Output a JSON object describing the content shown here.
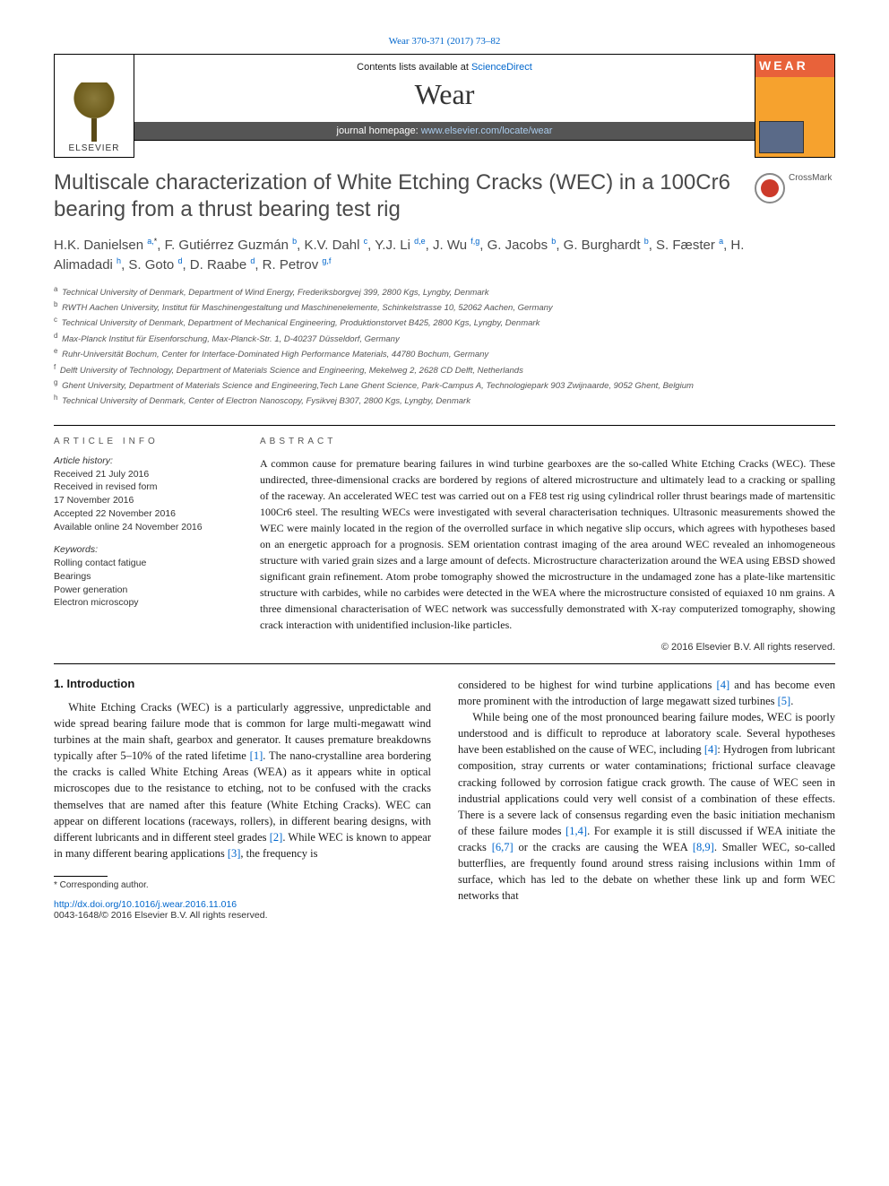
{
  "topLink": {
    "text": "Wear 370-371 (2017) 73–82",
    "href": "#"
  },
  "header": {
    "listingPrefix": "Contents lists available at ",
    "listingLink": "ScienceDirect",
    "journalName": "Wear",
    "homepagePrefix": "journal homepage: ",
    "homepageLink": "www.elsevier.com/locate/wear",
    "publisher": "ELSEVIER",
    "coverLabel": "WEAR"
  },
  "crossmark": {
    "label": "CrossMark"
  },
  "title": "Multiscale characterization of White Etching Cracks (WEC) in a 100Cr6 bearing from a thrust bearing test rig",
  "authors": [
    {
      "name": "H.K. Danielsen",
      "sup": "a,",
      "ast": "*"
    },
    {
      "name": "F. Gutiérrez Guzmán",
      "sup": "b"
    },
    {
      "name": "K.V. Dahl",
      "sup": "c"
    },
    {
      "name": "Y.J. Li",
      "sup": "d,e"
    },
    {
      "name": "J. Wu",
      "sup": "f,g"
    },
    {
      "name": "G. Jacobs",
      "sup": "b"
    },
    {
      "name": "G. Burghardt",
      "sup": "b"
    },
    {
      "name": "S. Fæster",
      "sup": "a"
    },
    {
      "name": "H. Alimadadi",
      "sup": "h"
    },
    {
      "name": "S. Goto",
      "sup": "d"
    },
    {
      "name": "D. Raabe",
      "sup": "d"
    },
    {
      "name": "R. Petrov",
      "sup": "g,f"
    }
  ],
  "affiliations": [
    {
      "sup": "a",
      "text": "Technical University of Denmark, Department of Wind Energy, Frederiksborgvej 399, 2800 Kgs, Lyngby, Denmark"
    },
    {
      "sup": "b",
      "text": "RWTH Aachen University, Institut für Maschinengestaltung und Maschinenelemente, Schinkelstrasse 10, 52062 Aachen, Germany"
    },
    {
      "sup": "c",
      "text": "Technical University of Denmark, Department of Mechanical Engineering, Produktionstorvet B425, 2800 Kgs, Lyngby, Denmark"
    },
    {
      "sup": "d",
      "text": "Max-Planck Institut für Eisenforschung, Max-Planck-Str. 1, D-40237 Düsseldorf, Germany"
    },
    {
      "sup": "e",
      "text": "Ruhr-Universität Bochum, Center for Interface-Dominated High Performance Materials, 44780 Bochum, Germany"
    },
    {
      "sup": "f",
      "text": "Delft University of Technology, Department of Materials Science and Engineering, Mekelweg 2, 2628 CD Delft, Netherlands"
    },
    {
      "sup": "g",
      "text": "Ghent University, Department of Materials Science and Engineering,Tech Lane Ghent Science, Park-Campus A, Technologiepark 903 Zwijnaarde, 9052 Ghent, Belgium"
    },
    {
      "sup": "h",
      "text": "Technical University of Denmark, Center of Electron Nanoscopy, Fysikvej B307, 2800 Kgs, Lyngby, Denmark"
    }
  ],
  "info": {
    "headInfo": "ARTICLE INFO",
    "headAbstract": "ABSTRACT",
    "historyLabel": "Article history:",
    "history": [
      "Received 21 July 2016",
      "Received in revised form",
      "17 November 2016",
      "Accepted 22 November 2016",
      "Available online 24 November 2016"
    ],
    "keywordsLabel": "Keywords:",
    "keywords": [
      "Rolling contact fatigue",
      "Bearings",
      "Power generation",
      "Electron microscopy"
    ]
  },
  "abstract": "A common cause for premature bearing failures in wind turbine gearboxes are the so-called White Etching Cracks (WEC). These undirected, three-dimensional cracks are bordered by regions of altered microstructure and ultimately lead to a cracking or spalling of the raceway. An accelerated WEC test was carried out on a FE8 test rig using cylindrical roller thrust bearings made of martensitic 100Cr6 steel. The resulting WECs were investigated with several characterisation techniques. Ultrasonic measurements showed the WEC were mainly located in the region of the overrolled surface in which negative slip occurs, which agrees with hypotheses based on an energetic approach for a prognosis. SEM orientation contrast imaging of the area around WEC revealed an inhomogeneous structure with varied grain sizes and a large amount of defects. Microstructure characterization around the WEA using EBSD showed significant grain refinement. Atom probe tomography showed the microstructure in the undamaged zone has a plate-like martensitic structure with carbides, while no carbides were detected in the WEA where the microstructure consisted of equiaxed 10 nm grains. A three dimensional characterisation of WEC network was successfully demonstrated with X-ray computerized tomography, showing crack interaction with unidentified inclusion-like particles.",
  "copyright": "© 2016 Elsevier B.V. All rights reserved.",
  "body": {
    "heading": "1.  Introduction",
    "leftParas": [
      "White Etching Cracks (WEC) is a particularly aggressive, unpredictable and wide spread bearing failure mode that is common for large multi-megawatt wind turbines at the main shaft, gearbox and generator. It causes premature breakdowns typically after 5–10% of the rated lifetime [1]. The nano-crystalline area bordering the cracks is called White Etching Areas (WEA) as it appears white in optical microscopes due to the resistance to etching, not to be confused with the cracks themselves that are named after this feature (White Etching Cracks). WEC can appear on different locations (raceways, rollers), in different bearing designs, with different lubricants and in different steel grades [2]. While WEC is known to appear in many different bearing applications [3], the frequency is"
    ],
    "rightParas": [
      "considered to be highest for wind turbine applications [4] and has become even more prominent with the introduction of large megawatt sized turbines [5].",
      "While being one of the most pronounced bearing failure modes, WEC is poorly understood and is difficult to reproduce at laboratory scale. Several hypotheses have been established on the cause of WEC, including [4]: Hydrogen from lubricant composition, stray currents or water contaminations; frictional surface cleavage cracking followed by corrosion fatigue crack growth. The cause of WEC seen in industrial applications could very well consist of a combination of these effects. There is a severe lack of consensus regarding even the basic initiation mechanism of these failure modes [1,4]. For example it is still discussed if WEA initiate the cracks [6,7] or the cracks are causing the WEA [8,9]. Smaller WEC, so-called butterflies, are frequently found around stress raising inclusions within 1mm of surface, which has led to the debate on whether these link up and form WEC networks that"
    ]
  },
  "footnote": "* Corresponding author.",
  "footer": {
    "doi": "http://dx.doi.org/10.1016/j.wear.2016.11.016",
    "issn": "0043-1648/© 2016 Elsevier B.V. All rights reserved."
  },
  "refs": {
    "r1": "[1]",
    "r2": "[2]",
    "r3": "[3]",
    "r4": "[4]",
    "r5": "[5]",
    "r14": "[1,4]",
    "r67": "[6,7]",
    "r89": "[8,9]"
  },
  "colors": {
    "link": "#0066cc",
    "headerBar": "#555555",
    "coverTop": "#e8623a",
    "coverBottom": "#f6a22e",
    "crossmarkRed": "#cc3a2a"
  }
}
